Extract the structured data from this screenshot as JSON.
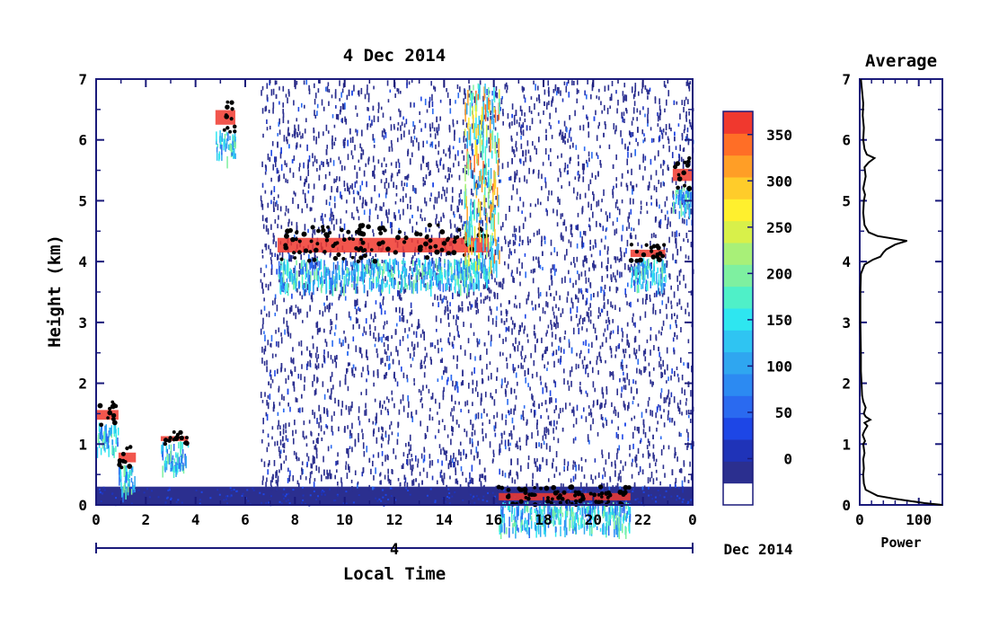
{
  "chart_data": [
    {
      "type": "heatmap",
      "title": "4 Dec 2014",
      "xlabel": "Local Time",
      "ylabel": "Height (km)",
      "xlim": [
        0,
        24
      ],
      "ylim": [
        0,
        7
      ],
      "x_ticks": [
        "0",
        "2",
        "4",
        "6",
        "8",
        "10",
        "12",
        "14",
        "16",
        "18",
        "20",
        "22",
        "0"
      ],
      "y_ticks": [
        "0",
        "1",
        "2",
        "3",
        "4",
        "5",
        "6",
        "7"
      ],
      "date_axis": {
        "day_label": "4",
        "month_label": "Dec 2014"
      },
      "features": [
        {
          "kind": "boundary_layer",
          "x_range": [
            0,
            24
          ],
          "height_km": [
            0,
            0.3
          ]
        },
        {
          "kind": "noise_field",
          "x_range": [
            6.6,
            24
          ],
          "height_km": [
            0.3,
            7
          ]
        },
        {
          "kind": "cloud_layer",
          "x_range": [
            7.3,
            15.8
          ],
          "height_km": [
            4.0,
            4.6
          ]
        },
        {
          "kind": "cloud_layer",
          "x_range": [
            21.5,
            22.9
          ],
          "height_km": [
            4.0,
            4.3
          ]
        },
        {
          "kind": "cloud_layer",
          "x_range": [
            23.2,
            24
          ],
          "height_km": [
            5.2,
            5.7
          ]
        },
        {
          "kind": "cloud_layer",
          "x_range": [
            4.8,
            5.6
          ],
          "height_km": [
            6.1,
            6.7
          ]
        },
        {
          "kind": "cloud_layer",
          "x_range": [
            0,
            0.9
          ],
          "height_km": [
            1.3,
            1.7
          ]
        },
        {
          "kind": "cloud_layer",
          "x_range": [
            0.9,
            1.6
          ],
          "height_km": [
            0.6,
            1.0
          ]
        },
        {
          "kind": "cloud_layer",
          "x_range": [
            2.6,
            3.7
          ],
          "height_km": [
            1.0,
            1.2
          ]
        },
        {
          "kind": "cloud_layer",
          "x_range": [
            16.2,
            21.5
          ],
          "height_km": [
            0.0,
            0.3
          ]
        },
        {
          "kind": "precipitation_streak",
          "x_range": [
            14.8,
            16.2
          ],
          "height_km": [
            4.0,
            7.0
          ]
        }
      ]
    },
    {
      "type": "colorbar",
      "ticks": [
        0,
        50,
        100,
        150,
        200,
        250,
        300,
        350
      ],
      "range": [
        -50,
        375
      ],
      "colors": [
        "#ffffff",
        "#2b2f8f",
        "#1f33b8",
        "#1d46e6",
        "#2a6af0",
        "#2c8af2",
        "#2fa6f0",
        "#2fc4f2",
        "#2ee6f0",
        "#4ff0c8",
        "#7ef0a0",
        "#a8f078",
        "#d8f04a",
        "#fff02e",
        "#ffcc2a",
        "#ff9e26",
        "#ff6e26",
        "#f0382e"
      ]
    },
    {
      "type": "line",
      "title": "Average",
      "xlabel": "Power",
      "xlim": [
        0,
        140
      ],
      "ylim": [
        0,
        7
      ],
      "x_ticks": [
        "0",
        "100"
      ],
      "y_ticks": [
        "0",
        "1",
        "2",
        "3",
        "4",
        "5",
        "6",
        "7"
      ],
      "points": [
        [
          140,
          0.0
        ],
        [
          110,
          0.03
        ],
        [
          60,
          0.1
        ],
        [
          30,
          0.15
        ],
        [
          10,
          0.25
        ],
        [
          7,
          0.35
        ],
        [
          6,
          0.5
        ],
        [
          7,
          0.6
        ],
        [
          6,
          0.75
        ],
        [
          8,
          0.85
        ],
        [
          6,
          1.0
        ],
        [
          9,
          1.05
        ],
        [
          5,
          1.15
        ],
        [
          8,
          1.22
        ],
        [
          13,
          1.3
        ],
        [
          8,
          1.35
        ],
        [
          18,
          1.4
        ],
        [
          10,
          1.45
        ],
        [
          7,
          1.5
        ],
        [
          10,
          1.6
        ],
        [
          6,
          1.7
        ],
        [
          4,
          1.8
        ],
        [
          3,
          2.0
        ],
        [
          2,
          2.2
        ],
        [
          2,
          2.5
        ],
        [
          1,
          3.0
        ],
        [
          1,
          3.5
        ],
        [
          2,
          3.8
        ],
        [
          8,
          3.95
        ],
        [
          22,
          4.03
        ],
        [
          35,
          4.08
        ],
        [
          40,
          4.15
        ],
        [
          45,
          4.2
        ],
        [
          60,
          4.28
        ],
        [
          80,
          4.34
        ],
        [
          30,
          4.42
        ],
        [
          15,
          4.48
        ],
        [
          8,
          4.6
        ],
        [
          6,
          4.8
        ],
        [
          7,
          5.0
        ],
        [
          9,
          5.1
        ],
        [
          6,
          5.2
        ],
        [
          10,
          5.4
        ],
        [
          8,
          5.55
        ],
        [
          15,
          5.63
        ],
        [
          25,
          5.7
        ],
        [
          12,
          5.76
        ],
        [
          8,
          5.85
        ],
        [
          6,
          6.0
        ],
        [
          7,
          6.2
        ],
        [
          5,
          6.4
        ],
        [
          6,
          6.6
        ],
        [
          4,
          6.8
        ],
        [
          2,
          7.0
        ]
      ]
    }
  ]
}
